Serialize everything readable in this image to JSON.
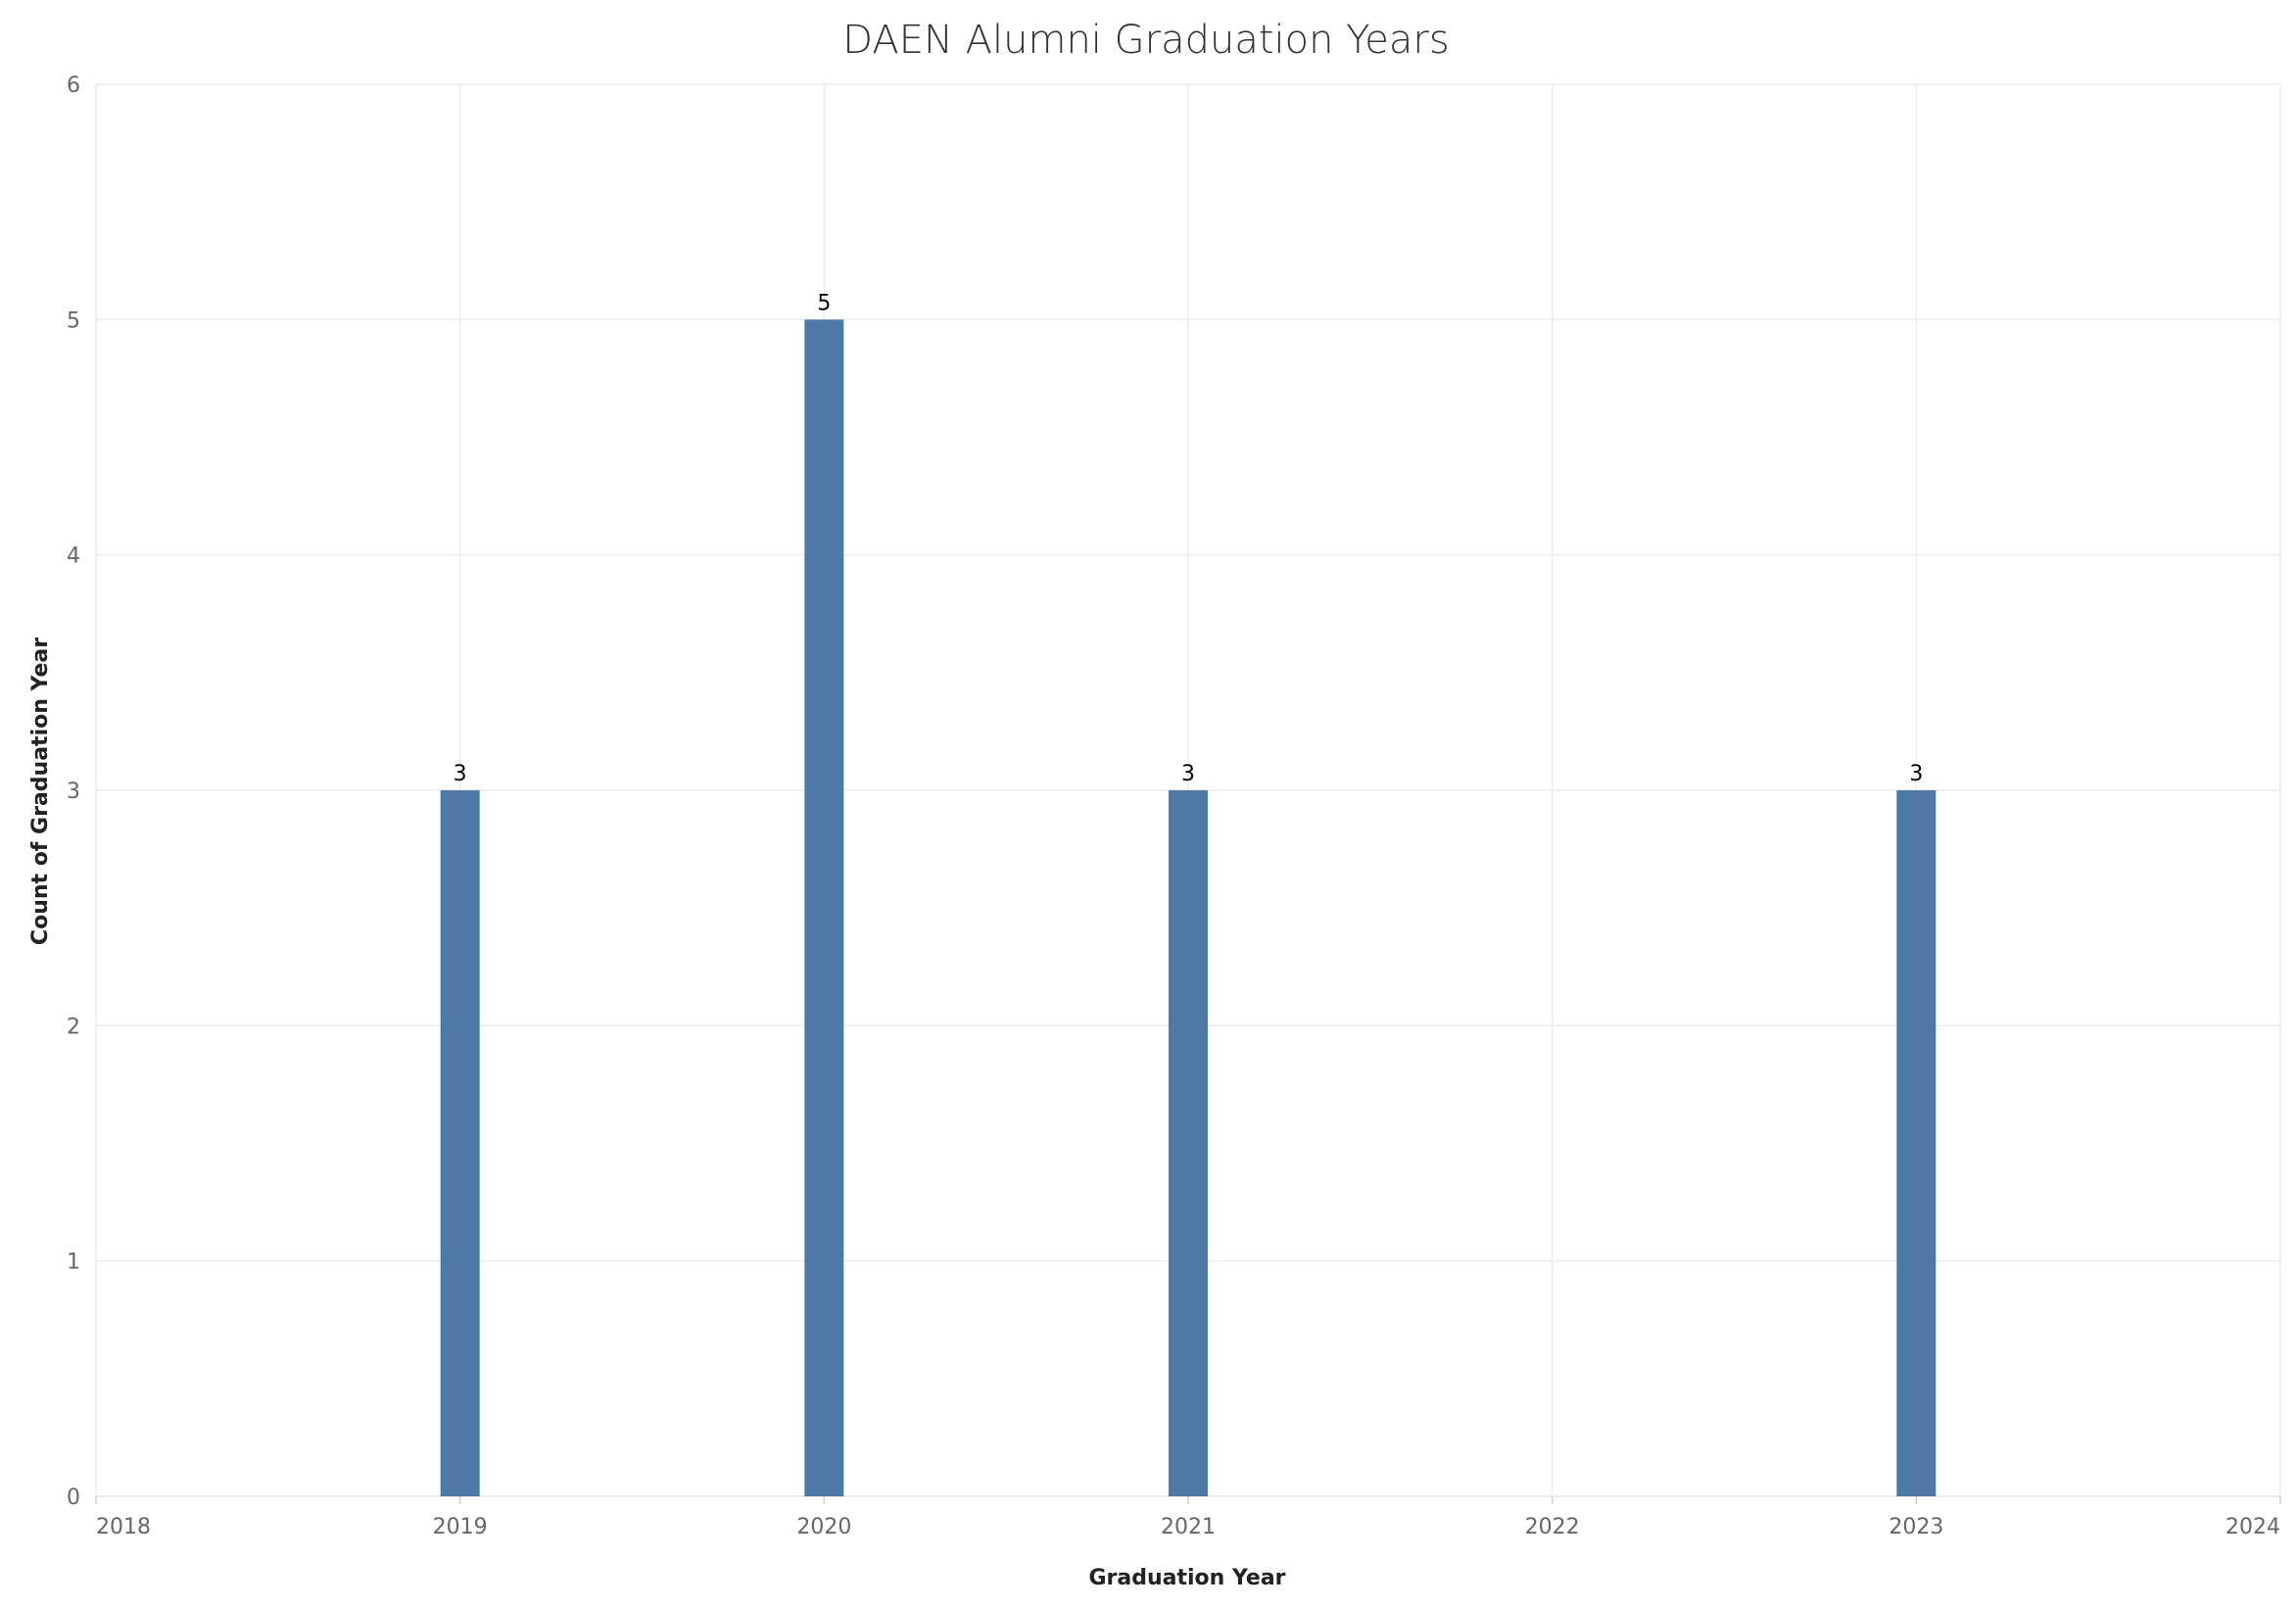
{
  "chart_data": {
    "type": "bar",
    "title": "DAEN Alumni Graduation Years",
    "xlabel": "Graduation Year",
    "ylabel": "Count of Graduation Year",
    "x_ticks": [
      "2018",
      "2019",
      "2020",
      "2021",
      "2022",
      "2023",
      "2024"
    ],
    "y_ticks": [
      "0",
      "1",
      "2",
      "3",
      "4",
      "5",
      "6"
    ],
    "xlim": [
      2018,
      2024
    ],
    "ylim": [
      0,
      6
    ],
    "grid": true,
    "bar_color": "#4e79a7",
    "series": [
      {
        "x": [
          2019,
          2020,
          2021,
          2023
        ],
        "values": [
          3,
          5,
          3,
          3
        ],
        "labels": [
          "3",
          "5",
          "3",
          "3"
        ]
      }
    ]
  }
}
